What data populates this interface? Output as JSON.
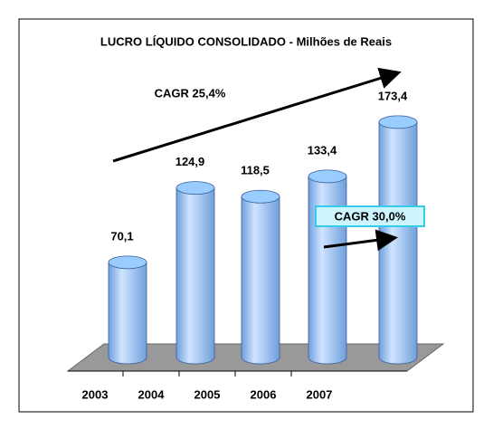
{
  "chart_data": {
    "type": "bar",
    "title": "LUCRO LÍQUIDO CONSOLIDADO - Milhões de Reais",
    "categories": [
      "2003",
      "2004",
      "2005",
      "2006",
      "2007"
    ],
    "values": [
      70.1,
      124.9,
      118.5,
      133.4,
      173.4
    ],
    "value_labels": [
      "70,1",
      "124,9",
      "118,5",
      "133,4",
      "173,4"
    ],
    "color": "#99ccff",
    "annotations": [
      "CAGR 25,4%",
      "CAGR 30,0%"
    ]
  }
}
